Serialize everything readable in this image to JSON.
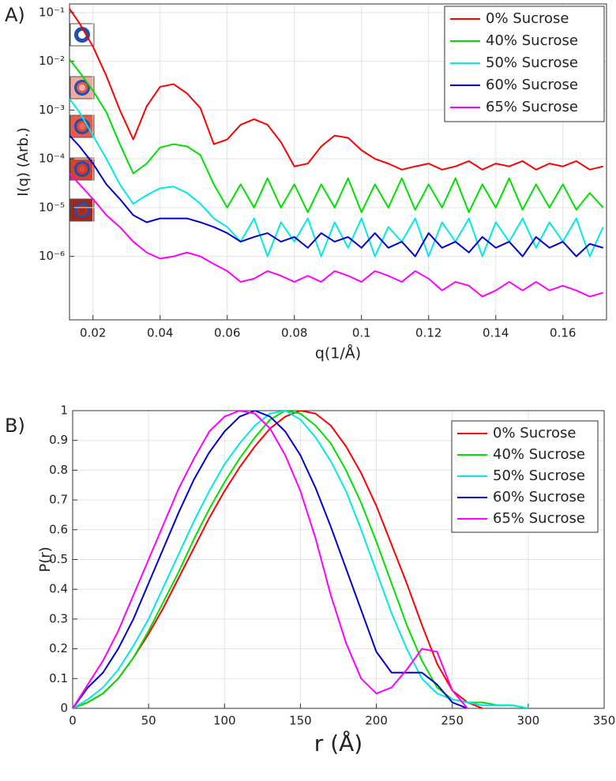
{
  "chart_data": [
    {
      "type": "line",
      "label": "A)",
      "xlabel": "q(1/Å)",
      "ylabel": "I(q) (Arb.)",
      "log_y": true,
      "grid": true,
      "legend": "upper right",
      "xlim": [
        0.013,
        0.173
      ],
      "ylim": [
        5e-08,
        0.15
      ],
      "xticks": [
        0.02,
        0.04,
        0.06,
        0.08,
        0.1,
        0.12,
        0.14,
        0.16
      ],
      "yticks": [
        {
          "value": 1e-06,
          "label": "10⁻⁶"
        },
        {
          "value": 1e-05,
          "label": "10⁻⁵"
        },
        {
          "value": 0.0001,
          "label": "10⁻⁴"
        },
        {
          "value": 0.001,
          "label": "10⁻³"
        },
        {
          "value": 0.01,
          "label": "10⁻²"
        },
        {
          "value": 0.1,
          "label": "10⁻¹"
        }
      ],
      "x": [
        0.013,
        0.016,
        0.02,
        0.024,
        0.028,
        0.032,
        0.036,
        0.04,
        0.044,
        0.048,
        0.052,
        0.056,
        0.06,
        0.064,
        0.068,
        0.072,
        0.076,
        0.08,
        0.084,
        0.088,
        0.092,
        0.096,
        0.1,
        0.104,
        0.108,
        0.112,
        0.116,
        0.12,
        0.124,
        0.128,
        0.132,
        0.136,
        0.14,
        0.144,
        0.148,
        0.152,
        0.156,
        0.16,
        0.164,
        0.168,
        0.172
      ],
      "series": [
        {
          "name": "0% Sucrose",
          "color": "#ff0000",
          "values": [
            0.12,
            0.06,
            0.02,
            0.005,
            0.001,
            0.00025,
            0.0012,
            0.003,
            0.0034,
            0.0022,
            0.0011,
            0.0002,
            0.00025,
            0.0005,
            0.00065,
            0.0005,
            0.00022,
            7e-05,
            8e-05,
            0.00018,
            0.0003,
            0.00027,
            0.00015,
            0.0001,
            8e-05,
            6e-05,
            7e-05,
            8e-05,
            6e-05,
            7e-05,
            9e-05,
            6e-05,
            8e-05,
            7e-05,
            9e-05,
            6e-05,
            8e-05,
            7e-05,
            9e-05,
            6e-05,
            7e-05
          ]
        },
        {
          "name": "40% Sucrose",
          "color": "#00e000",
          "values": [
            0.011,
            0.006,
            0.0025,
            0.0009,
            0.0002,
            5e-05,
            8e-05,
            0.00017,
            0.0002,
            0.00018,
            0.00012,
            3e-05,
            1e-05,
            3e-05,
            1e-05,
            4e-05,
            1e-05,
            3e-05,
            8e-06,
            3e-05,
            1e-05,
            4e-05,
            8e-06,
            3e-05,
            1e-05,
            4e-05,
            9e-06,
            3e-05,
            1e-05,
            4e-05,
            8e-06,
            3e-05,
            1e-05,
            4e-05,
            9e-06,
            3e-05,
            1e-05,
            3e-05,
            9e-06,
            2e-05,
            1e-05
          ]
        },
        {
          "name": "50% Sucrose",
          "color": "#00e8e8",
          "values": [
            0.0017,
            0.0009,
            0.0003,
            0.0001,
            3e-05,
            1.2e-05,
            1.8e-05,
            2.5e-05,
            2.7e-05,
            2e-05,
            1.2e-05,
            6e-06,
            4e-06,
            2e-06,
            6e-06,
            1e-06,
            5e-06,
            2e-06,
            6e-06,
            1e-06,
            5e-06,
            1.5e-06,
            6e-06,
            1e-06,
            4e-06,
            2e-06,
            6e-06,
            1e-06,
            5e-06,
            2e-06,
            6e-06,
            1e-06,
            5e-06,
            2e-06,
            6e-06,
            1.5e-06,
            5e-06,
            2e-06,
            6e-06,
            1e-06,
            4e-06
          ]
        },
        {
          "name": "60% Sucrose",
          "color": "#0000d0",
          "values": [
            0.0003,
            0.00018,
            8e-05,
            3e-05,
            1.5e-05,
            7e-06,
            5e-06,
            6e-06,
            6e-06,
            6e-06,
            5e-06,
            4e-06,
            3e-06,
            2e-06,
            2.5e-06,
            3e-06,
            2e-06,
            2.5e-06,
            1.5e-06,
            3e-06,
            2e-06,
            2.5e-06,
            1.5e-06,
            3e-06,
            1.5e-06,
            2e-06,
            1e-06,
            3e-06,
            1.5e-06,
            2e-06,
            1.2e-06,
            2.5e-06,
            1.5e-06,
            2e-06,
            1e-06,
            2.5e-06,
            1.5e-06,
            2e-06,
            1e-06,
            1.8e-06,
            1.5e-06
          ]
        },
        {
          "name": "65% Sucrose",
          "color": "#ff00ff",
          "values": [
            5e-05,
            3e-05,
            1.5e-05,
            7e-06,
            4e-06,
            2e-06,
            1.2e-06,
            9e-07,
            1e-06,
            1.2e-06,
            1e-06,
            7e-07,
            5e-07,
            3e-07,
            3.5e-07,
            5e-07,
            4e-07,
            3e-07,
            4e-07,
            3e-07,
            5e-07,
            4e-07,
            3e-07,
            5e-07,
            4e-07,
            3e-07,
            5e-07,
            3.5e-07,
            2e-07,
            3e-07,
            2.5e-07,
            1.5e-07,
            2e-07,
            3e-07,
            2e-07,
            3e-07,
            2e-07,
            2.5e-07,
            2e-07,
            1.5e-07,
            1.8e-07
          ]
        }
      ]
    },
    {
      "type": "line",
      "label": "B)",
      "xlabel": "r (Å)",
      "ylabel": "P(r)",
      "log_y": false,
      "grid": true,
      "legend": "upper right",
      "xlim": [
        0,
        350
      ],
      "ylim": [
        0,
        1
      ],
      "xticks": [
        0,
        50,
        100,
        150,
        200,
        250,
        300,
        350
      ],
      "yticks": [
        0,
        0.1,
        0.2,
        0.3,
        0.4,
        0.5,
        0.6,
        0.7,
        0.8,
        0.9,
        1
      ],
      "x": [
        0,
        10,
        20,
        30,
        40,
        50,
        60,
        70,
        80,
        90,
        100,
        110,
        120,
        130,
        140,
        150,
        160,
        170,
        180,
        190,
        200,
        210,
        220,
        230,
        240,
        250,
        260,
        270,
        280,
        290,
        300
      ],
      "series": [
        {
          "name": "0% Sucrose",
          "color": "#ff0000",
          "values": [
            0,
            0.02,
            0.05,
            0.1,
            0.17,
            0.25,
            0.34,
            0.44,
            0.54,
            0.64,
            0.73,
            0.81,
            0.88,
            0.94,
            0.98,
            1.0,
            0.99,
            0.95,
            0.88,
            0.79,
            0.68,
            0.55,
            0.42,
            0.28,
            0.15,
            0.06,
            0.02,
            0,
            null,
            null,
            null
          ]
        },
        {
          "name": "40% Sucrose",
          "color": "#00e000",
          "values": [
            0,
            0.02,
            0.05,
            0.1,
            0.17,
            0.26,
            0.36,
            0.46,
            0.57,
            0.67,
            0.76,
            0.84,
            0.91,
            0.97,
            1.0,
            0.99,
            0.95,
            0.89,
            0.8,
            0.69,
            0.56,
            0.42,
            0.28,
            0.16,
            0.07,
            0.03,
            0.02,
            0.02,
            0.01,
            0.01,
            0
          ]
        },
        {
          "name": "50% Sucrose",
          "color": "#00e8e8",
          "values": [
            0,
            0.03,
            0.07,
            0.13,
            0.21,
            0.3,
            0.41,
            0.52,
            0.63,
            0.73,
            0.82,
            0.89,
            0.95,
            0.99,
            1.0,
            0.97,
            0.91,
            0.83,
            0.73,
            0.6,
            0.46,
            0.32,
            0.2,
            0.1,
            0.05,
            0.03,
            0.02,
            0.01,
            0.01,
            0.01,
            0
          ]
        },
        {
          "name": "60% Sucrose",
          "color": "#0000d0",
          "values": [
            0,
            0.07,
            0.12,
            0.2,
            0.3,
            0.42,
            0.54,
            0.66,
            0.77,
            0.86,
            0.93,
            0.98,
            1.0,
            0.98,
            0.93,
            0.85,
            0.74,
            0.61,
            0.47,
            0.33,
            0.19,
            0.12,
            0.12,
            0.12,
            0.08,
            0.02,
            0,
            null,
            null,
            null,
            null
          ]
        },
        {
          "name": "65% Sucrose",
          "color": "#ff00ff",
          "values": [
            0,
            0.08,
            0.16,
            0.26,
            0.38,
            0.5,
            0.62,
            0.74,
            0.84,
            0.93,
            0.98,
            1.0,
            0.99,
            0.94,
            0.85,
            0.73,
            0.57,
            0.38,
            0.22,
            0.1,
            0.05,
            0.07,
            0.13,
            0.2,
            0.19,
            0.06,
            0,
            null,
            null,
            null,
            null
          ]
        }
      ]
    }
  ]
}
